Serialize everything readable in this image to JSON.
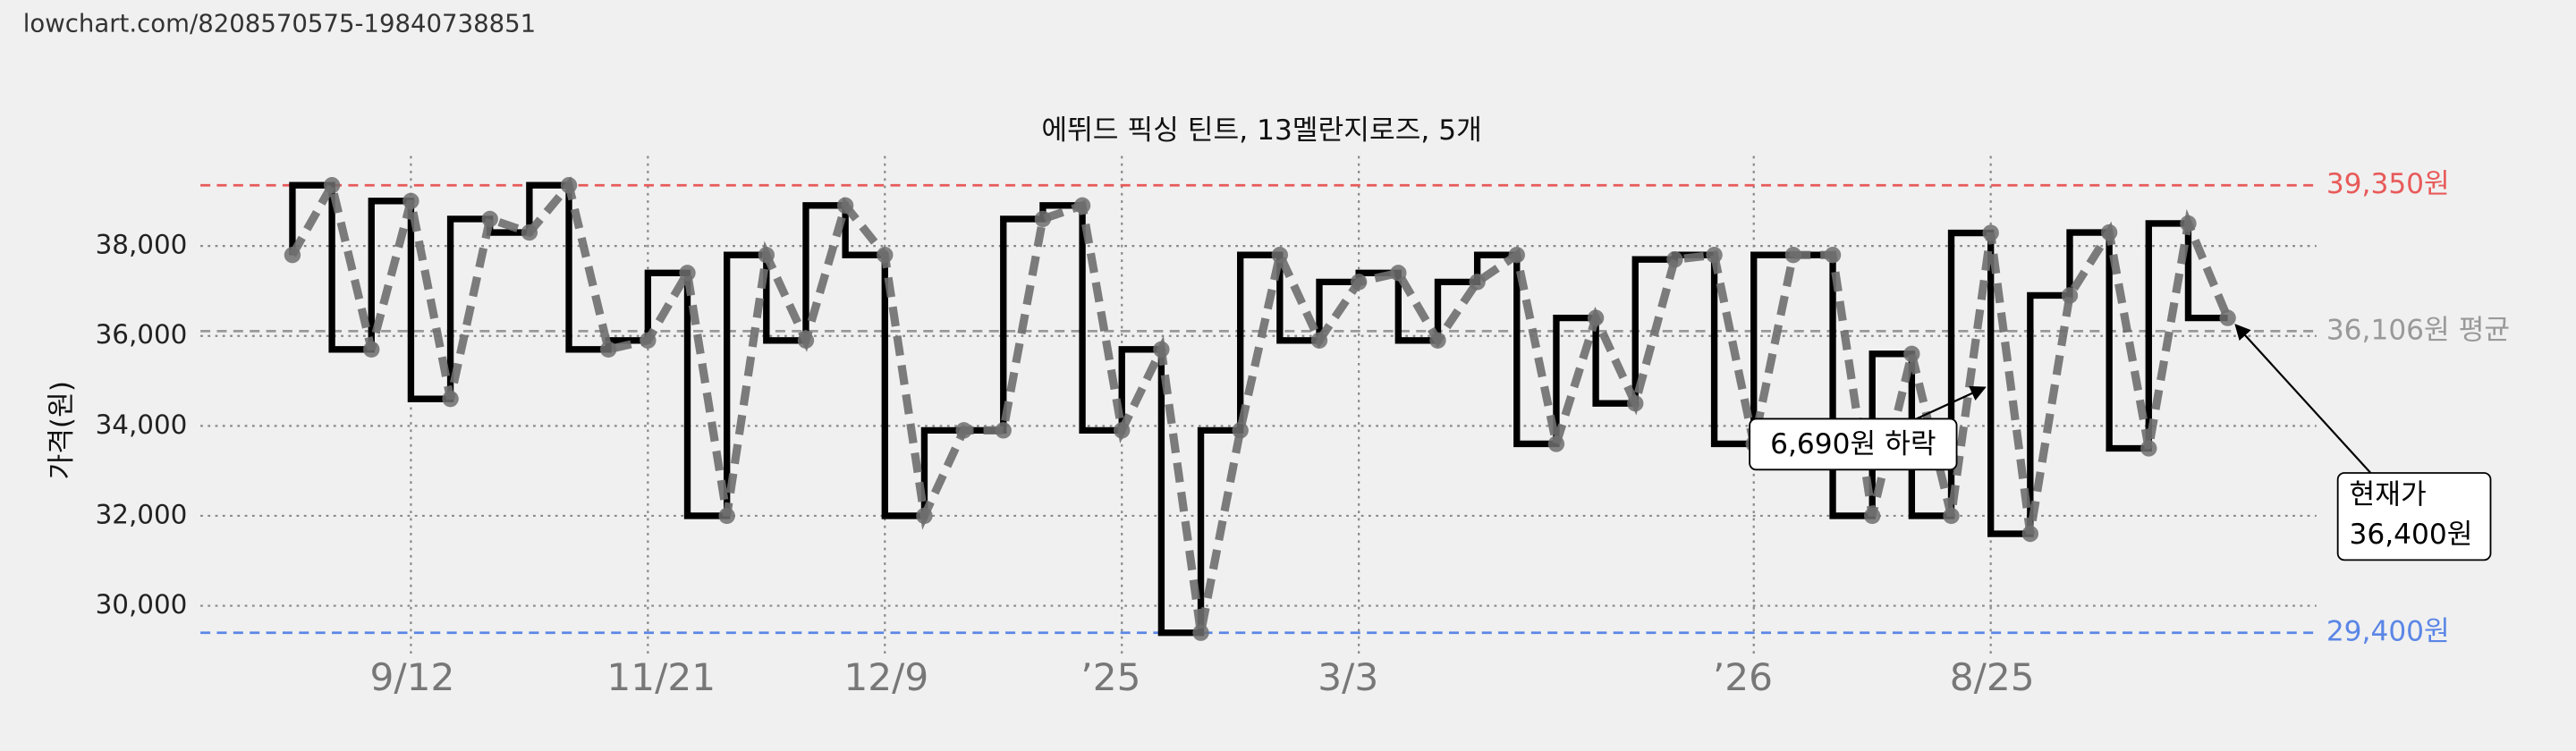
{
  "source_url": "lowchart.com/8208570575-19840738851",
  "chart_data": {
    "type": "line",
    "step": true,
    "title": "에뛰드 픽싱 틴트, 13멜란지로즈, 5개",
    "y_label": "가격(원)",
    "categories": [
      null,
      null,
      null,
      "9/12",
      null,
      null,
      null,
      null,
      null,
      "11/21",
      null,
      null,
      null,
      null,
      null,
      "12/9",
      null,
      null,
      null,
      null,
      null,
      "’25",
      null,
      null,
      null,
      null,
      null,
      "3/3",
      null,
      null,
      null,
      null,
      null,
      null,
      null,
      null,
      null,
      "’26",
      null,
      null,
      null,
      null,
      null,
      "8/25",
      null,
      null,
      null,
      null,
      null,
      null
    ],
    "values": [
      37800,
      39350,
      35700,
      39000,
      34600,
      38600,
      38300,
      39350,
      35700,
      35900,
      37400,
      32000,
      37800,
      35900,
      38900,
      37800,
      32000,
      33900,
      33900,
      38600,
      38900,
      33900,
      35700,
      29400,
      33900,
      37800,
      35900,
      37200,
      37400,
      35900,
      37200,
      37800,
      33600,
      36400,
      34500,
      37700,
      37800,
      33600,
      37800,
      37800,
      32000,
      35600,
      32000,
      38290,
      31600,
      36900,
      38300,
      33500,
      38500,
      36400
    ],
    "step_color": "#000000",
    "line_color": "#6e6e6e",
    "ylim": [
      28900,
      40000
    ],
    "yticks": [
      {
        "value": 30000,
        "label": "30,000"
      },
      {
        "value": 32000,
        "label": "32,000"
      },
      {
        "value": 34000,
        "label": "34,000"
      },
      {
        "value": 36000,
        "label": "36,000"
      },
      {
        "value": 38000,
        "label": "38,000"
      }
    ],
    "grid": true,
    "reference_lines": [
      {
        "value": 39350,
        "label": "39,350원",
        "color": "#e85a5a"
      },
      {
        "value": 36106,
        "label": "36,106원 평균",
        "color": "#999999"
      },
      {
        "value": 29400,
        "label": "29,400원",
        "color": "#5b86e6"
      }
    ],
    "annotations": [
      {
        "text": "6,690원 하락"
      },
      {
        "text": [
          "현재가",
          "36,400원"
        ]
      }
    ]
  }
}
